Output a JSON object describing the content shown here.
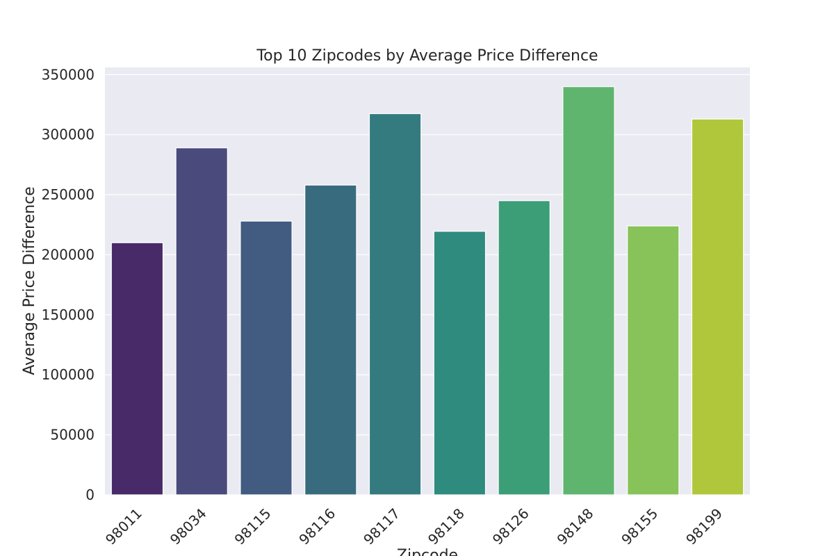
{
  "chart_data": {
    "type": "bar",
    "title": "Top 10 Zipcodes by Average Price Difference",
    "xlabel": "Zipcode",
    "ylabel": "Average Price Difference",
    "categories": [
      "98011",
      "98034",
      "98115",
      "98116",
      "98117",
      "98118",
      "98126",
      "98148",
      "98155",
      "98199"
    ],
    "values": [
      210000,
      289000,
      228000,
      258000,
      317500,
      219500,
      245000,
      340000,
      224000,
      313000
    ],
    "ylim": [
      0,
      356000
    ],
    "yticks": [
      0,
      50000,
      100000,
      150000,
      200000,
      250000,
      300000,
      350000
    ],
    "ytick_labels": [
      "0",
      "50000",
      "100000",
      "150000",
      "200000",
      "250000",
      "300000",
      "350000"
    ],
    "grid": true,
    "colors": [
      "#482a68",
      "#4a4a7d",
      "#425b80",
      "#396b7f",
      "#347b7f",
      "#2f8b7e",
      "#3b9e77",
      "#5fb56e",
      "#88c35a",
      "#b1c73b"
    ],
    "background_color": "#eaeaf2",
    "grid_color": "#ffffff"
  }
}
